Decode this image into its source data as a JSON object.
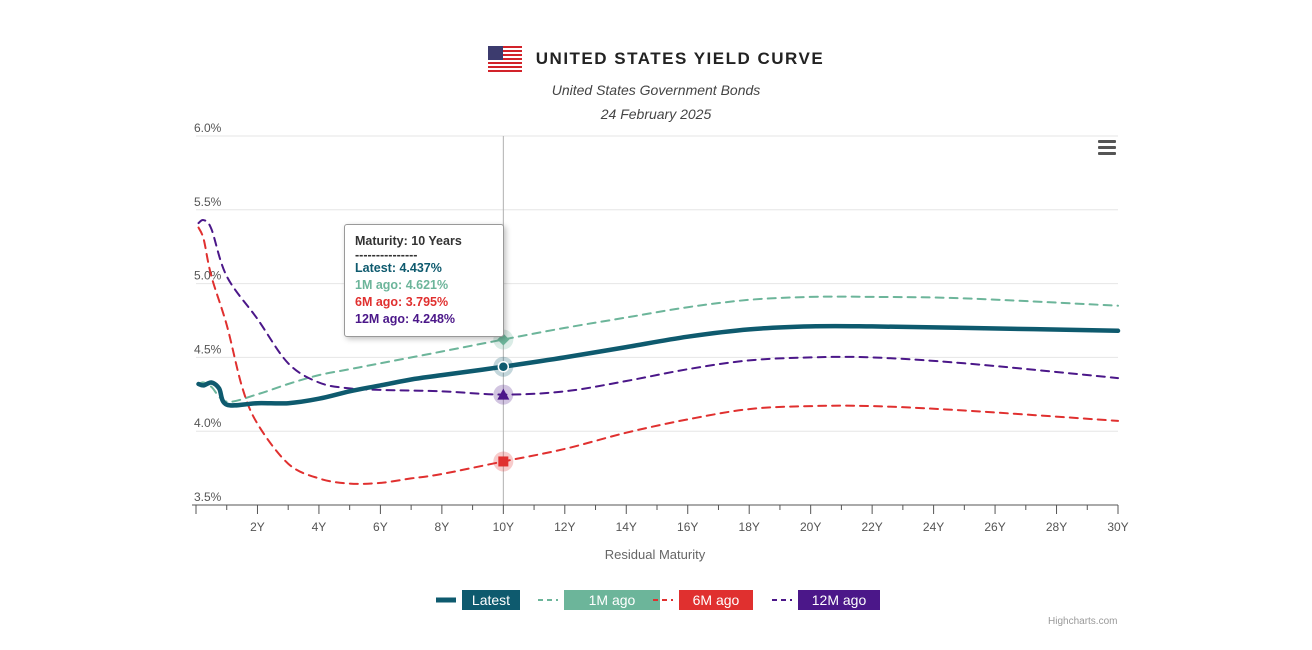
{
  "header": {
    "title": "UNITED STATES YIELD CURVE",
    "subtitle": "United States Government Bonds",
    "date": "24 February 2025"
  },
  "tooltip": {
    "heading": "Maturity: 10 Years",
    "divider": "---------------",
    "lines": [
      {
        "text": "Latest: 4.437%",
        "color": "#0e5a6e"
      },
      {
        "text": "1M ago: 4.621%",
        "color": "#6cb59a"
      },
      {
        "text": "6M ago: 3.795%",
        "color": "#e0302f"
      },
      {
        "text": "12M ago: 4.248%",
        "color": "#4b1789"
      }
    ]
  },
  "credit": "Highcharts.com",
  "chart_data": {
    "type": "line",
    "xlabel": "Residual Maturity",
    "ylabel": "",
    "x_ticks": [
      "2Y",
      "4Y",
      "6Y",
      "8Y",
      "10Y",
      "12Y",
      "14Y",
      "16Y",
      "18Y",
      "20Y",
      "22Y",
      "24Y",
      "26Y",
      "28Y",
      "30Y"
    ],
    "y_ticks": [
      "3.5%",
      "4.0%",
      "4.5%",
      "5.0%",
      "5.5%",
      "6.0%"
    ],
    "xlim": [
      0,
      30
    ],
    "ylim": [
      3.5,
      6.0
    ],
    "grid": true,
    "legend_position": "bottom",
    "crosshair_x": 10,
    "series": [
      {
        "name": "Latest",
        "color": "#0e5a6e",
        "style": "solid",
        "marker": "circle",
        "points": [
          [
            0.08,
            4.32
          ],
          [
            0.25,
            4.31
          ],
          [
            0.5,
            4.33
          ],
          [
            0.75,
            4.29
          ],
          [
            1,
            4.18
          ],
          [
            2,
            4.19
          ],
          [
            3,
            4.19
          ],
          [
            4,
            4.22
          ],
          [
            5,
            4.27
          ],
          [
            6,
            4.31
          ],
          [
            7,
            4.35
          ],
          [
            8,
            4.38
          ],
          [
            10,
            4.437
          ],
          [
            12,
            4.5
          ],
          [
            14,
            4.57
          ],
          [
            16,
            4.64
          ],
          [
            18,
            4.69
          ],
          [
            20,
            4.71
          ],
          [
            22,
            4.71
          ],
          [
            25,
            4.7
          ],
          [
            30,
            4.68
          ]
        ]
      },
      {
        "name": "1M ago",
        "color": "#6cb59a",
        "style": "dash",
        "marker": "diamond",
        "points": [
          [
            0.08,
            4.32
          ],
          [
            0.25,
            4.33
          ],
          [
            0.5,
            4.3
          ],
          [
            1,
            4.2
          ],
          [
            2,
            4.25
          ],
          [
            3,
            4.32
          ],
          [
            4,
            4.38
          ],
          [
            5,
            4.42
          ],
          [
            6,
            4.46
          ],
          [
            8,
            4.54
          ],
          [
            10,
            4.621
          ],
          [
            12,
            4.7
          ],
          [
            14,
            4.77
          ],
          [
            16,
            4.84
          ],
          [
            18,
            4.89
          ],
          [
            20,
            4.91
          ],
          [
            22,
            4.91
          ],
          [
            25,
            4.9
          ],
          [
            30,
            4.85
          ]
        ]
      },
      {
        "name": "6M ago",
        "color": "#e0302f",
        "style": "dash",
        "marker": "square",
        "points": [
          [
            0.08,
            5.38
          ],
          [
            0.25,
            5.3
          ],
          [
            0.5,
            5.05
          ],
          [
            1,
            4.72
          ],
          [
            1.5,
            4.3
          ],
          [
            2,
            4.05
          ],
          [
            3,
            3.78
          ],
          [
            4,
            3.68
          ],
          [
            5,
            3.645
          ],
          [
            6,
            3.65
          ],
          [
            7,
            3.68
          ],
          [
            8,
            3.71
          ],
          [
            10,
            3.795
          ],
          [
            12,
            3.88
          ],
          [
            14,
            3.99
          ],
          [
            16,
            4.08
          ],
          [
            18,
            4.15
          ],
          [
            20,
            4.17
          ],
          [
            22,
            4.17
          ],
          [
            25,
            4.14
          ],
          [
            30,
            4.07
          ]
        ]
      },
      {
        "name": "12M ago",
        "color": "#4b1789",
        "style": "dash",
        "marker": "triangle",
        "points": [
          [
            0.08,
            5.41
          ],
          [
            0.25,
            5.43
          ],
          [
            0.5,
            5.37
          ],
          [
            1,
            5.05
          ],
          [
            2,
            4.76
          ],
          [
            3,
            4.46
          ],
          [
            4,
            4.33
          ],
          [
            5,
            4.29
          ],
          [
            6,
            4.28
          ],
          [
            8,
            4.27
          ],
          [
            10,
            4.248
          ],
          [
            12,
            4.27
          ],
          [
            14,
            4.34
          ],
          [
            16,
            4.42
          ],
          [
            18,
            4.48
          ],
          [
            20,
            4.5
          ],
          [
            22,
            4.5
          ],
          [
            25,
            4.46
          ],
          [
            30,
            4.36
          ]
        ]
      }
    ]
  }
}
